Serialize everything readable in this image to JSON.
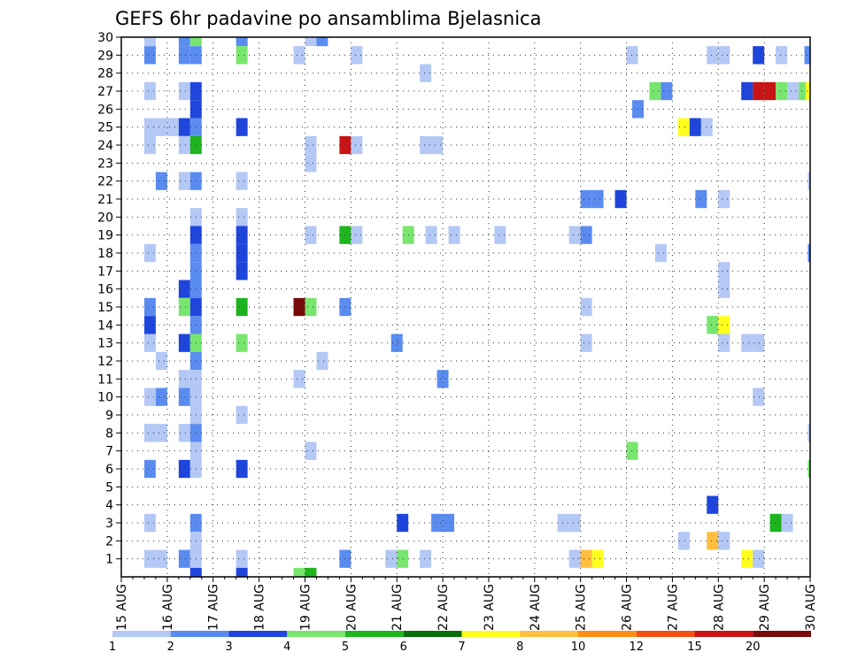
{
  "chart_data": {
    "type": "heatmap",
    "title": "GEFS 6hr padavine po ansamblima Bjelasnica",
    "x_axis": {
      "range": [
        0,
        60
      ],
      "ticks": [
        {
          "x": 0,
          "label": "15 AUG"
        },
        {
          "x": 4,
          "label": "16 AUG"
        },
        {
          "x": 8,
          "label": "17 AUG"
        },
        {
          "x": 12,
          "label": "18 AUG"
        },
        {
          "x": 16,
          "label": "19 AUG"
        },
        {
          "x": 20,
          "label": "20 AUG"
        },
        {
          "x": 24,
          "label": "21 AUG"
        },
        {
          "x": 28,
          "label": "22 AUG"
        },
        {
          "x": 32,
          "label": "23 AUG"
        },
        {
          "x": 36,
          "label": "24 AUG"
        },
        {
          "x": 40,
          "label": "25 AUG"
        },
        {
          "x": 44,
          "label": "26 AUG"
        },
        {
          "x": 48,
          "label": "27 AUG"
        },
        {
          "x": 52,
          "label": "28 AUG"
        },
        {
          "x": 56,
          "label": "29 AUG"
        },
        {
          "x": 60,
          "label": "30 AUG"
        }
      ]
    },
    "y_axis": {
      "range": [
        0,
        30
      ],
      "ticks": [
        "1",
        "2",
        "3",
        "4",
        "5",
        "6",
        "7",
        "8",
        "9",
        "10",
        "11",
        "12",
        "13",
        "14",
        "15",
        "16",
        "17",
        "18",
        "19",
        "20",
        "21",
        "22",
        "23",
        "24",
        "25",
        "26",
        "27",
        "28",
        "29",
        "30"
      ]
    },
    "grid": true,
    "colorbar": {
      "placement": "bottom",
      "bins": [
        {
          "from": 1,
          "to": 2,
          "color": "#b4c8f5"
        },
        {
          "from": 2,
          "to": 3,
          "color": "#5a8cf0"
        },
        {
          "from": 3,
          "to": 4,
          "color": "#1e46dc"
        },
        {
          "from": 4,
          "to": 5,
          "color": "#78e66e"
        },
        {
          "from": 5,
          "to": 6,
          "color": "#1eb41e"
        },
        {
          "from": 6,
          "to": 7,
          "color": "#0a6e0a"
        },
        {
          "from": 7,
          "to": 8,
          "color": "#ffff1e"
        },
        {
          "from": 8,
          "to": 10,
          "color": "#ffbe3c"
        },
        {
          "from": 10,
          "to": 12,
          "color": "#ff8c14"
        },
        {
          "from": 12,
          "to": 15,
          "color": "#f05014"
        },
        {
          "from": 15,
          "to": 20,
          "color": "#c81414"
        },
        {
          "from": 20,
          "to": 30,
          "color": "#780a0a"
        }
      ],
      "labels": [
        "1",
        "2",
        "3",
        "4",
        "5",
        "6",
        "7",
        "8",
        "10",
        "12",
        "15",
        "20"
      ]
    },
    "cells": [
      {
        "x": 2,
        "m": 30,
        "v": 1.5
      },
      {
        "x": 5,
        "m": 30,
        "v": 2.5
      },
      {
        "x": 6,
        "m": 30,
        "v": 4.5
      },
      {
        "x": 10,
        "m": 30,
        "v": 2.5
      },
      {
        "x": 16,
        "m": 30,
        "v": 1.5
      },
      {
        "x": 17,
        "m": 30,
        "v": 2.5
      },
      {
        "x": 2,
        "m": 29,
        "v": 2.5
      },
      {
        "x": 5,
        "m": 29,
        "v": 2.5
      },
      {
        "x": 6,
        "m": 29,
        "v": 2.5
      },
      {
        "x": 10,
        "m": 29,
        "v": 4.5
      },
      {
        "x": 15,
        "m": 29,
        "v": 1.5
      },
      {
        "x": 20,
        "m": 29,
        "v": 1.5
      },
      {
        "x": 44,
        "m": 29,
        "v": 1.5
      },
      {
        "x": 51,
        "m": 29,
        "v": 1.5
      },
      {
        "x": 52,
        "m": 29,
        "v": 1.5
      },
      {
        "x": 55,
        "m": 29,
        "v": 3.5
      },
      {
        "x": 57,
        "m": 29,
        "v": 1.5
      },
      {
        "x": 59.5,
        "m": 29,
        "v": 2.5
      },
      {
        "x": 26,
        "m": 28,
        "v": 1.5
      },
      {
        "x": 2,
        "m": 27,
        "v": 1.5
      },
      {
        "x": 5,
        "m": 27,
        "v": 1.5
      },
      {
        "x": 6,
        "m": 27,
        "v": 3.5
      },
      {
        "x": 46,
        "m": 27,
        "v": 4.5
      },
      {
        "x": 47,
        "m": 27,
        "v": 2.5
      },
      {
        "x": 54,
        "m": 27,
        "v": 3.5
      },
      {
        "x": 55,
        "m": 27,
        "v": 17
      },
      {
        "x": 56,
        "m": 27,
        "v": 17
      },
      {
        "x": 57,
        "m": 27,
        "v": 4.5
      },
      {
        "x": 58,
        "m": 27,
        "v": 1.5
      },
      {
        "x": 59,
        "m": 27,
        "v": 4.5
      },
      {
        "x": 59.6,
        "m": 27,
        "v": 7.5
      },
      {
        "x": 6,
        "m": 26,
        "v": 3.5
      },
      {
        "x": 44.5,
        "m": 26,
        "v": 2.5
      },
      {
        "x": 2,
        "m": 25,
        "v": 1.5
      },
      {
        "x": 3,
        "m": 25,
        "v": 1.5
      },
      {
        "x": 4,
        "m": 25,
        "v": 1.5
      },
      {
        "x": 5,
        "m": 25,
        "v": 3.5
      },
      {
        "x": 6,
        "m": 25,
        "v": 2.5
      },
      {
        "x": 10,
        "m": 25,
        "v": 3.5
      },
      {
        "x": 48.5,
        "m": 25,
        "v": 7.5
      },
      {
        "x": 49.5,
        "m": 25,
        "v": 3.5
      },
      {
        "x": 50.5,
        "m": 25,
        "v": 1.5
      },
      {
        "x": 2,
        "m": 24,
        "v": 1.5
      },
      {
        "x": 5,
        "m": 24,
        "v": 1.5
      },
      {
        "x": 6,
        "m": 24,
        "v": 5.5
      },
      {
        "x": 16,
        "m": 24,
        "v": 1.5
      },
      {
        "x": 19,
        "m": 24,
        "v": 17
      },
      {
        "x": 20,
        "m": 24,
        "v": 1.5
      },
      {
        "x": 26,
        "m": 24,
        "v": 1.5
      },
      {
        "x": 27,
        "m": 24,
        "v": 1.5
      },
      {
        "x": 16,
        "m": 23,
        "v": 1.5
      },
      {
        "x": 3,
        "m": 22,
        "v": 2.5
      },
      {
        "x": 5,
        "m": 22,
        "v": 1.5
      },
      {
        "x": 6,
        "m": 22,
        "v": 2.5
      },
      {
        "x": 10,
        "m": 22,
        "v": 1.5
      },
      {
        "x": 59.8,
        "m": 22,
        "v": 1.5
      },
      {
        "x": 40,
        "m": 21,
        "v": 2.5
      },
      {
        "x": 41,
        "m": 21,
        "v": 2.5
      },
      {
        "x": 43,
        "m": 21,
        "v": 3.5
      },
      {
        "x": 50,
        "m": 21,
        "v": 2.5
      },
      {
        "x": 52,
        "m": 21,
        "v": 1.5
      },
      {
        "x": 6,
        "m": 20,
        "v": 1.5
      },
      {
        "x": 10,
        "m": 20,
        "v": 1.5
      },
      {
        "x": 6,
        "m": 19,
        "v": 3.5
      },
      {
        "x": 10,
        "m": 19,
        "v": 3.5
      },
      {
        "x": 16,
        "m": 19,
        "v": 1.5
      },
      {
        "x": 19,
        "m": 19,
        "v": 5.5
      },
      {
        "x": 20,
        "m": 19,
        "v": 1.5
      },
      {
        "x": 24.5,
        "m": 19,
        "v": 4.5
      },
      {
        "x": 26.5,
        "m": 19,
        "v": 1.5
      },
      {
        "x": 28.5,
        "m": 19,
        "v": 1.5
      },
      {
        "x": 32.5,
        "m": 19,
        "v": 1.5
      },
      {
        "x": 39,
        "m": 19,
        "v": 1.5
      },
      {
        "x": 40,
        "m": 19,
        "v": 2.5
      },
      {
        "x": 2,
        "m": 18,
        "v": 1.5
      },
      {
        "x": 6,
        "m": 18,
        "v": 2.5
      },
      {
        "x": 10,
        "m": 18,
        "v": 3.5
      },
      {
        "x": 46.5,
        "m": 18,
        "v": 1.5
      },
      {
        "x": 59.8,
        "m": 18,
        "v": 2.5
      },
      {
        "x": 6,
        "m": 17,
        "v": 2.5
      },
      {
        "x": 10,
        "m": 17,
        "v": 3.5
      },
      {
        "x": 52,
        "m": 17,
        "v": 1.5
      },
      {
        "x": 5,
        "m": 16,
        "v": 3.5
      },
      {
        "x": 6,
        "m": 16,
        "v": 2.5
      },
      {
        "x": 52,
        "m": 16,
        "v": 1.5
      },
      {
        "x": 2,
        "m": 15,
        "v": 2.5
      },
      {
        "x": 5,
        "m": 15,
        "v": 4.5
      },
      {
        "x": 6,
        "m": 15,
        "v": 3.5
      },
      {
        "x": 10,
        "m": 15,
        "v": 5.5
      },
      {
        "x": 15,
        "m": 15,
        "v": 25
      },
      {
        "x": 16,
        "m": 15,
        "v": 4.5
      },
      {
        "x": 19,
        "m": 15,
        "v": 2.5
      },
      {
        "x": 40,
        "m": 15,
        "v": 1.5
      },
      {
        "x": 2,
        "m": 14,
        "v": 3.5
      },
      {
        "x": 6,
        "m": 14,
        "v": 2.5
      },
      {
        "x": 51,
        "m": 14,
        "v": 4.5
      },
      {
        "x": 52,
        "m": 14,
        "v": 7.5
      },
      {
        "x": 2,
        "m": 13,
        "v": 1.5
      },
      {
        "x": 5,
        "m": 13,
        "v": 3.5
      },
      {
        "x": 6,
        "m": 13,
        "v": 4.5
      },
      {
        "x": 10,
        "m": 13,
        "v": 4.5
      },
      {
        "x": 23.5,
        "m": 13,
        "v": 2.5
      },
      {
        "x": 40,
        "m": 13,
        "v": 1.5
      },
      {
        "x": 52,
        "m": 13,
        "v": 1.5
      },
      {
        "x": 54,
        "m": 13,
        "v": 1.5
      },
      {
        "x": 55,
        "m": 13,
        "v": 1.5
      },
      {
        "x": 3,
        "m": 12,
        "v": 1.5
      },
      {
        "x": 6,
        "m": 12,
        "v": 2.5
      },
      {
        "x": 17,
        "m": 12,
        "v": 1.5
      },
      {
        "x": 5,
        "m": 11,
        "v": 1.5
      },
      {
        "x": 6,
        "m": 11,
        "v": 1.5
      },
      {
        "x": 15,
        "m": 11,
        "v": 1.5
      },
      {
        "x": 27.5,
        "m": 11,
        "v": 2.5
      },
      {
        "x": 2,
        "m": 10,
        "v": 1.5
      },
      {
        "x": 3,
        "m": 10,
        "v": 2.5
      },
      {
        "x": 5,
        "m": 10,
        "v": 2.5
      },
      {
        "x": 6,
        "m": 10,
        "v": 1.5
      },
      {
        "x": 55,
        "m": 10,
        "v": 1.5
      },
      {
        "x": 6,
        "m": 9,
        "v": 1.5
      },
      {
        "x": 10,
        "m": 9,
        "v": 1.5
      },
      {
        "x": 2,
        "m": 8,
        "v": 1.5
      },
      {
        "x": 3,
        "m": 8,
        "v": 1.5
      },
      {
        "x": 5,
        "m": 8,
        "v": 1.5
      },
      {
        "x": 6,
        "m": 8,
        "v": 2.5
      },
      {
        "x": 59.8,
        "m": 8,
        "v": 1.5
      },
      {
        "x": 6,
        "m": 7,
        "v": 1.5
      },
      {
        "x": 16,
        "m": 7,
        "v": 1.5
      },
      {
        "x": 44,
        "m": 7,
        "v": 4.5
      },
      {
        "x": 2,
        "m": 6,
        "v": 2.5
      },
      {
        "x": 5,
        "m": 6,
        "v": 3.5
      },
      {
        "x": 6,
        "m": 6,
        "v": 1.5
      },
      {
        "x": 10,
        "m": 6,
        "v": 3.5
      },
      {
        "x": 59.8,
        "m": 6,
        "v": 4.5
      },
      {
        "x": 51,
        "m": 4,
        "v": 3.5
      },
      {
        "x": 2,
        "m": 3,
        "v": 1.5
      },
      {
        "x": 6,
        "m": 3,
        "v": 2.5
      },
      {
        "x": 24,
        "m": 3,
        "v": 3.5
      },
      {
        "x": 27,
        "m": 3,
        "v": 2.5
      },
      {
        "x": 28,
        "m": 3,
        "v": 2.5
      },
      {
        "x": 38,
        "m": 3,
        "v": 1.5
      },
      {
        "x": 39,
        "m": 3,
        "v": 1.5
      },
      {
        "x": 56.5,
        "m": 3,
        "v": 5.5
      },
      {
        "x": 57.5,
        "m": 3,
        "v": 1.5
      },
      {
        "x": 6,
        "m": 2,
        "v": 1.5
      },
      {
        "x": 48.5,
        "m": 2,
        "v": 1.5
      },
      {
        "x": 51,
        "m": 2,
        "v": 9
      },
      {
        "x": 52,
        "m": 2,
        "v": 1.5
      },
      {
        "x": 2,
        "m": 1,
        "v": 1.5
      },
      {
        "x": 3,
        "m": 1,
        "v": 1.5
      },
      {
        "x": 5,
        "m": 1,
        "v": 2.5
      },
      {
        "x": 6,
        "m": 1,
        "v": 1.5
      },
      {
        "x": 10,
        "m": 1,
        "v": 1.5
      },
      {
        "x": 19,
        "m": 1,
        "v": 2.5
      },
      {
        "x": 23,
        "m": 1,
        "v": 1.5
      },
      {
        "x": 24,
        "m": 1,
        "v": 4.5
      },
      {
        "x": 26,
        "m": 1,
        "v": 1.5
      },
      {
        "x": 39,
        "m": 1,
        "v": 1.5
      },
      {
        "x": 40,
        "m": 1,
        "v": 9
      },
      {
        "x": 41,
        "m": 1,
        "v": 7.5
      },
      {
        "x": 54,
        "m": 1,
        "v": 7.5
      },
      {
        "x": 55,
        "m": 1,
        "v": 1.5
      },
      {
        "x": 6,
        "m": 0,
        "v": 3.5
      },
      {
        "x": 10,
        "m": 0,
        "v": 3.5
      },
      {
        "x": 15,
        "m": 0,
        "v": 4.5
      },
      {
        "x": 16,
        "m": 0,
        "v": 5.5
      }
    ]
  }
}
